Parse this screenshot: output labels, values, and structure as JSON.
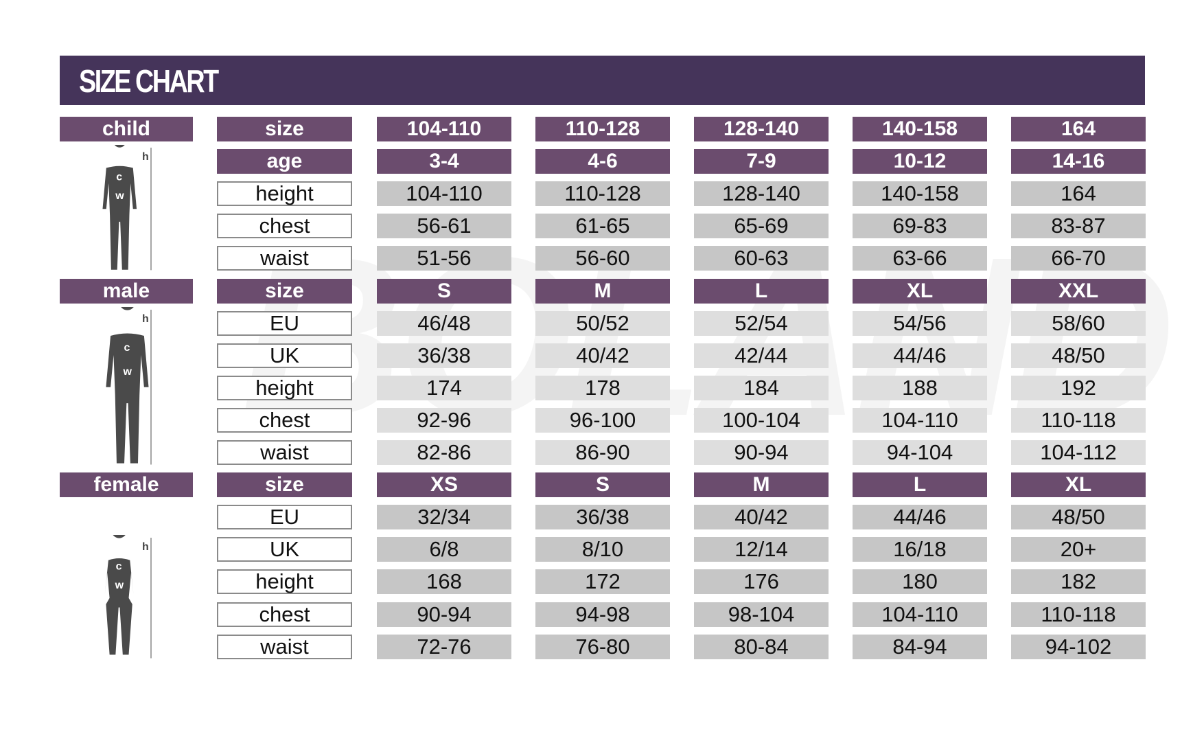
{
  "title": "SIZE CHART",
  "colors": {
    "header": "#45345a",
    "label": "#6b4c6e",
    "value_cell": "#c6c6c6"
  },
  "sections": [
    {
      "name": "child",
      "icon": "child-silhouette-icon",
      "rows": [
        {
          "label": "size",
          "header": true,
          "values": [
            "104-110",
            "110-128",
            "128-140",
            "140-158",
            "164"
          ]
        },
        {
          "label": "age",
          "header": true,
          "values": [
            "3-4",
            "4-6",
            "7-9",
            "10-12",
            "14-16"
          ]
        },
        {
          "label": "height",
          "values": [
            "104-110",
            "110-128",
            "128-140",
            "140-158",
            "164"
          ]
        },
        {
          "label": "chest",
          "values": [
            "56-61",
            "61-65",
            "65-69",
            "69-83",
            "83-87"
          ]
        },
        {
          "label": "waist",
          "values": [
            "51-56",
            "56-60",
            "60-63",
            "63-66",
            "66-70"
          ]
        }
      ]
    },
    {
      "name": "male",
      "icon": "male-silhouette-icon",
      "rows": [
        {
          "label": "size",
          "header": true,
          "values": [
            "S",
            "M",
            "L",
            "XL",
            "XXL"
          ]
        },
        {
          "label": "EU",
          "values": [
            "46/48",
            "50/52",
            "52/54",
            "54/56",
            "58/60"
          ]
        },
        {
          "label": "UK",
          "values": [
            "36/38",
            "40/42",
            "42/44",
            "44/46",
            "48/50"
          ]
        },
        {
          "label": "height",
          "values": [
            "174",
            "178",
            "184",
            "188",
            "192"
          ]
        },
        {
          "label": "chest",
          "values": [
            "92-96",
            "96-100",
            "100-104",
            "104-110",
            "110-118"
          ]
        },
        {
          "label": "waist",
          "values": [
            "82-86",
            "86-90",
            "90-94",
            "94-104",
            "104-112"
          ]
        }
      ]
    },
    {
      "name": "female",
      "icon": "female-silhouette-icon",
      "rows": [
        {
          "label": "size",
          "header": true,
          "values": [
            "XS",
            "S",
            "M",
            "L",
            "XL"
          ]
        },
        {
          "label": "EU",
          "values": [
            "32/34",
            "36/38",
            "40/42",
            "44/46",
            "48/50"
          ]
        },
        {
          "label": "UK",
          "values": [
            "6/8",
            "8/10",
            "12/14",
            "16/18",
            "20+"
          ]
        },
        {
          "label": "height",
          "values": [
            "168",
            "172",
            "176",
            "180",
            "182"
          ]
        },
        {
          "label": "chest",
          "values": [
            "90-94",
            "94-98",
            "98-104",
            "104-110",
            "110-118"
          ]
        },
        {
          "label": "waist",
          "values": [
            "72-76",
            "76-80",
            "80-84",
            "84-94",
            "94-102"
          ]
        }
      ]
    }
  ],
  "figure_marks": {
    "height": "h",
    "chest": "c",
    "waist": "w"
  },
  "watermark": "BOLAND"
}
